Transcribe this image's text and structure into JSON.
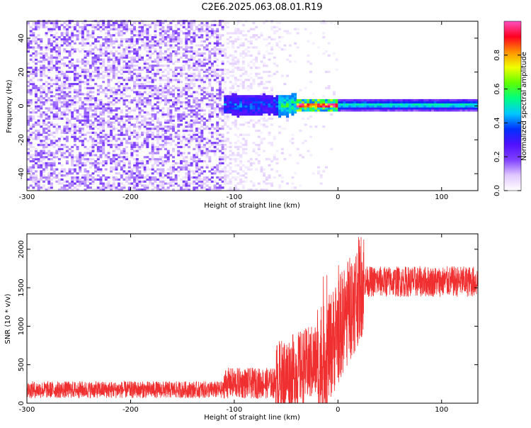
{
  "title": "C2E6.2025.063.08.01.R19",
  "chart_data": [
    {
      "type": "heatmap",
      "xlabel": "Height of straight line (km)",
      "ylabel": "Frequency (Hz)",
      "xlim": [
        -300,
        135
      ],
      "ylim": [
        -50,
        50
      ],
      "xticks": [
        -300,
        -200,
        -100,
        0,
        100
      ],
      "yticks": [
        -40,
        -20,
        0,
        20,
        40
      ],
      "colorbar": {
        "label": "Normalized spectral amplitude",
        "ticks": [
          0.0,
          0.2,
          0.4,
          0.6,
          0.8
        ],
        "range": [
          0,
          1
        ],
        "colors": [
          "#ffffff",
          "#e0c8ff",
          "#8040ff",
          "#5010ff",
          "#0030ff",
          "#00c8ff",
          "#00ff80",
          "#60ff00",
          "#f0ff00",
          "#ff9000",
          "#ff0020",
          "#ff50c0"
        ]
      },
      "regions": [
        {
          "x_range": [
            -300,
            -110
          ],
          "description_values": "broadband noise",
          "max_amplitude": 0.2
        },
        {
          "x_range": [
            -110,
            135
          ],
          "center_frequency": 0,
          "max_amplitude": 0.95
        }
      ]
    },
    {
      "type": "line",
      "xlabel": "Height of straight line (km)",
      "ylabel": "SNR (10 * v/v)",
      "xlim": [
        -300,
        135
      ],
      "ylim": [
        0,
        2200
      ],
      "xticks": [
        -300,
        -200,
        -100,
        0,
        100
      ],
      "yticks": [
        0,
        500,
        1000,
        1500,
        2000
      ],
      "color": "#f03030",
      "segments": [
        {
          "x": [
            -300,
            -110
          ],
          "mean": 175,
          "spread": 110
        },
        {
          "x": [
            -110,
            -60
          ],
          "mean": 260,
          "spread": 200
        },
        {
          "x": [
            -60,
            -20
          ],
          "mean": 500,
          "spread": 500
        },
        {
          "x": [
            -20,
            25
          ],
          "mean": 1100,
          "spread": 700
        },
        {
          "x": [
            25,
            135
          ],
          "mean": 1580,
          "spread": 200
        }
      ]
    }
  ]
}
